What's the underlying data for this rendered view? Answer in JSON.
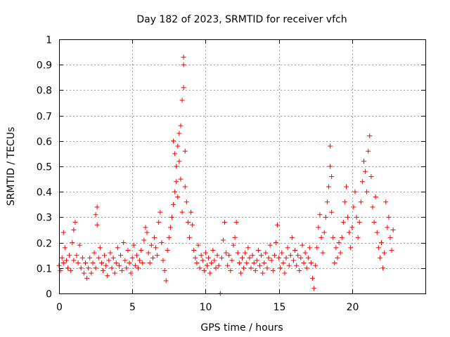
{
  "chart_data": {
    "type": "scatter",
    "title": "Day 182 of 2023, SRMTID for receiver vfch",
    "xlabel": "GPS time / hours",
    "ylabel": "SRMTID / TECUs",
    "xlim": [
      0,
      25
    ],
    "ylim": [
      0,
      1
    ],
    "x_ticks": [
      "0",
      "5",
      "10",
      "15",
      "20"
    ],
    "y_ticks": [
      "0",
      "0.1",
      "0.2",
      "0.3",
      "0.4",
      "0.5",
      "0.6",
      "0.7",
      "0.8",
      "0.9",
      "1"
    ],
    "marker": "+",
    "series": [
      {
        "name": "SRMTID",
        "color": "#ff0000",
        "points": [
          [
            0.0,
            0.11
          ],
          [
            0.1,
            0.09
          ],
          [
            0.2,
            0.14
          ],
          [
            0.3,
            0.12
          ],
          [
            0.3,
            0.24
          ],
          [
            0.4,
            0.18
          ],
          [
            0.5,
            0.13
          ],
          [
            0.6,
            0.1
          ],
          [
            0.7,
            0.15
          ],
          [
            0.8,
            0.09
          ],
          [
            0.9,
            0.2
          ],
          [
            1.0,
            0.13
          ],
          [
            1.0,
            0.25
          ],
          [
            1.1,
            0.28
          ],
          [
            1.2,
            0.15
          ],
          [
            1.3,
            0.12
          ],
          [
            1.4,
            0.19
          ],
          [
            1.5,
            0.1
          ],
          [
            1.6,
            0.14
          ],
          [
            1.7,
            0.08
          ],
          [
            1.8,
            0.12
          ],
          [
            1.9,
            0.06
          ],
          [
            2.0,
            0.1
          ],
          [
            2.1,
            0.14
          ],
          [
            2.2,
            0.08
          ],
          [
            2.3,
            0.12
          ],
          [
            2.4,
            0.16
          ],
          [
            2.5,
            0.1
          ],
          [
            2.5,
            0.31
          ],
          [
            2.6,
            0.34
          ],
          [
            2.6,
            0.27
          ],
          [
            2.7,
            0.14
          ],
          [
            2.8,
            0.18
          ],
          [
            2.9,
            0.12
          ],
          [
            3.0,
            0.09
          ],
          [
            3.1,
            0.15
          ],
          [
            3.2,
            0.11
          ],
          [
            3.3,
            0.07
          ],
          [
            3.4,
            0.13
          ],
          [
            3.5,
            0.16
          ],
          [
            3.6,
            0.1
          ],
          [
            3.7,
            0.14
          ],
          [
            3.8,
            0.08
          ],
          [
            3.9,
            0.12
          ],
          [
            4.0,
            0.18
          ],
          [
            4.1,
            0.11
          ],
          [
            4.2,
            0.15
          ],
          [
            4.3,
            0.09
          ],
          [
            4.4,
            0.2
          ],
          [
            4.5,
            0.13
          ],
          [
            4.6,
            0.1
          ],
          [
            4.7,
            0.17
          ],
          [
            4.8,
            0.12
          ],
          [
            4.9,
            0.08
          ],
          [
            5.0,
            0.14
          ],
          [
            5.1,
            0.19
          ],
          [
            5.2,
            0.11
          ],
          [
            5.3,
            0.15
          ],
          [
            5.4,
            0.1
          ],
          [
            5.5,
            0.13
          ],
          [
            5.6,
            0.17
          ],
          [
            5.7,
            0.12
          ],
          [
            5.8,
            0.21
          ],
          [
            5.9,
            0.26
          ],
          [
            6.0,
            0.24
          ],
          [
            6.1,
            0.16
          ],
          [
            6.2,
            0.12
          ],
          [
            6.3,
            0.19
          ],
          [
            6.4,
            0.14
          ],
          [
            6.5,
            0.22
          ],
          [
            6.6,
            0.18
          ],
          [
            6.7,
            0.15
          ],
          [
            6.8,
            0.28
          ],
          [
            6.9,
            0.32
          ],
          [
            7.0,
            0.2
          ],
          [
            7.1,
            0.13
          ],
          [
            7.2,
            0.09
          ],
          [
            7.3,
            0.05
          ],
          [
            7.4,
            0.17
          ],
          [
            7.5,
            0.22
          ],
          [
            7.6,
            0.26
          ],
          [
            7.7,
            0.3
          ],
          [
            7.8,
            0.35
          ],
          [
            7.8,
            0.6
          ],
          [
            7.9,
            0.55
          ],
          [
            7.9,
            0.4
          ],
          [
            8.0,
            0.5
          ],
          [
            8.0,
            0.44
          ],
          [
            8.1,
            0.58
          ],
          [
            8.1,
            0.38
          ],
          [
            8.2,
            0.63
          ],
          [
            8.2,
            0.52
          ],
          [
            8.3,
            0.66
          ],
          [
            8.3,
            0.45
          ],
          [
            8.4,
            0.76
          ],
          [
            8.4,
            0.32
          ],
          [
            8.5,
            0.93
          ],
          [
            8.5,
            0.9
          ],
          [
            8.5,
            0.81
          ],
          [
            8.6,
            0.56
          ],
          [
            8.6,
            0.42
          ],
          [
            8.7,
            0.36
          ],
          [
            8.8,
            0.28
          ],
          [
            8.9,
            0.22
          ],
          [
            9.0,
            0.32
          ],
          [
            9.1,
            0.27
          ],
          [
            9.2,
            0.17
          ],
          [
            9.3,
            0.14
          ],
          [
            9.4,
            0.12
          ],
          [
            9.5,
            0.19
          ],
          [
            9.6,
            0.1
          ],
          [
            9.7,
            0.15
          ],
          [
            9.8,
            0.13
          ],
          [
            9.9,
            0.09
          ],
          [
            10.0,
            0.16
          ],
          [
            10.1,
            0.11
          ],
          [
            10.2,
            0.14
          ],
          [
            10.3,
            0.08
          ],
          [
            10.4,
            0.12
          ],
          [
            10.5,
            0.17
          ],
          [
            10.6,
            0.13
          ],
          [
            10.7,
            0.1
          ],
          [
            10.8,
            0.15
          ],
          [
            10.9,
            0.11
          ],
          [
            11.0,
            0.0
          ],
          [
            11.1,
            0.14
          ],
          [
            11.2,
            0.21
          ],
          [
            11.3,
            0.28
          ],
          [
            11.4,
            0.16
          ],
          [
            11.5,
            0.11
          ],
          [
            11.6,
            0.15
          ],
          [
            11.7,
            0.09
          ],
          [
            11.8,
            0.13
          ],
          [
            11.9,
            0.19
          ],
          [
            12.0,
            0.22
          ],
          [
            12.1,
            0.28
          ],
          [
            12.2,
            0.16
          ],
          [
            12.3,
            0.12
          ],
          [
            12.4,
            0.08
          ],
          [
            12.5,
            0.14
          ],
          [
            12.6,
            0.1
          ],
          [
            12.7,
            0.16
          ],
          [
            12.8,
            0.12
          ],
          [
            12.9,
            0.18
          ],
          [
            13.0,
            0.14
          ],
          [
            13.1,
            0.1
          ],
          [
            13.2,
            0.15
          ],
          [
            13.3,
            0.12
          ],
          [
            13.4,
            0.09
          ],
          [
            13.5,
            0.13
          ],
          [
            13.6,
            0.17
          ],
          [
            13.7,
            0.11
          ],
          [
            13.8,
            0.15
          ],
          [
            13.9,
            0.08
          ],
          [
            14.0,
            0.12
          ],
          [
            14.1,
            0.16
          ],
          [
            14.2,
            0.1
          ],
          [
            14.3,
            0.14
          ],
          [
            14.4,
            0.19
          ],
          [
            14.5,
            0.13
          ],
          [
            14.6,
            0.09
          ],
          [
            14.7,
            0.15
          ],
          [
            14.8,
            0.2
          ],
          [
            14.9,
            0.27
          ],
          [
            15.0,
            0.14
          ],
          [
            15.1,
            0.1
          ],
          [
            15.2,
            0.16
          ],
          [
            15.3,
            0.12
          ],
          [
            15.4,
            0.08
          ],
          [
            15.5,
            0.14
          ],
          [
            15.6,
            0.18
          ],
          [
            15.7,
            0.11
          ],
          [
            15.8,
            0.15
          ],
          [
            15.9,
            0.22
          ],
          [
            16.0,
            0.13
          ],
          [
            16.1,
            0.17
          ],
          [
            16.2,
            0.11
          ],
          [
            16.3,
            0.15
          ],
          [
            16.4,
            0.09
          ],
          [
            16.5,
            0.14
          ],
          [
            16.6,
            0.19
          ],
          [
            16.7,
            0.12
          ],
          [
            16.8,
            0.16
          ],
          [
            16.9,
            0.1
          ],
          [
            17.0,
            0.14
          ],
          [
            17.1,
            0.18
          ],
          [
            17.2,
            0.12
          ],
          [
            17.3,
            0.06
          ],
          [
            17.4,
            0.02
          ],
          [
            17.5,
            0.11
          ],
          [
            17.6,
            0.18
          ],
          [
            17.7,
            0.26
          ],
          [
            17.8,
            0.31
          ],
          [
            17.9,
            0.22
          ],
          [
            18.0,
            0.16
          ],
          [
            18.1,
            0.24
          ],
          [
            18.2,
            0.3
          ],
          [
            18.3,
            0.36
          ],
          [
            18.4,
            0.42
          ],
          [
            18.5,
            0.58
          ],
          [
            18.5,
            0.5
          ],
          [
            18.6,
            0.46
          ],
          [
            18.6,
            0.32
          ],
          [
            18.7,
            0.22
          ],
          [
            18.8,
            0.12
          ],
          [
            18.9,
            0.18
          ],
          [
            19.0,
            0.14
          ],
          [
            19.1,
            0.2
          ],
          [
            19.2,
            0.16
          ],
          [
            19.3,
            0.22
          ],
          [
            19.4,
            0.28
          ],
          [
            19.5,
            0.36
          ],
          [
            19.6,
            0.42
          ],
          [
            19.7,
            0.3
          ],
          [
            19.8,
            0.24
          ],
          [
            19.9,
            0.18
          ],
          [
            20.0,
            0.26
          ],
          [
            20.1,
            0.34
          ],
          [
            20.2,
            0.4
          ],
          [
            20.3,
            0.3
          ],
          [
            20.4,
            0.22
          ],
          [
            20.5,
            0.28
          ],
          [
            20.6,
            0.36
          ],
          [
            20.7,
            0.44
          ],
          [
            20.8,
            0.52
          ],
          [
            20.9,
            0.48
          ],
          [
            21.0,
            0.4
          ],
          [
            21.1,
            0.56
          ],
          [
            21.2,
            0.62
          ],
          [
            21.3,
            0.46
          ],
          [
            21.4,
            0.34
          ],
          [
            21.5,
            0.28
          ],
          [
            21.6,
            0.38
          ],
          [
            21.7,
            0.24
          ],
          [
            21.8,
            0.18
          ],
          [
            21.9,
            0.14
          ],
          [
            22.0,
            0.2
          ],
          [
            22.1,
            0.1
          ],
          [
            22.2,
            0.16
          ],
          [
            22.3,
            0.36
          ],
          [
            22.4,
            0.26
          ],
          [
            22.5,
            0.3
          ],
          [
            22.6,
            0.22
          ],
          [
            22.7,
            0.17
          ],
          [
            22.8,
            0.25
          ]
        ]
      }
    ]
  }
}
